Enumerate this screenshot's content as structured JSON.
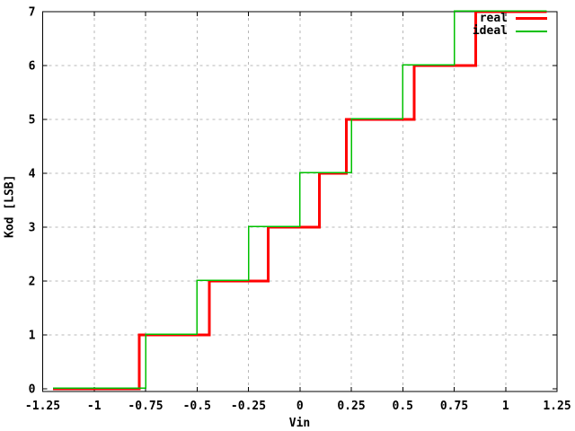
{
  "chart_data": {
    "type": "line",
    "subtype": "staircase-adc-transfer",
    "title": "",
    "xlabel": "Vin",
    "ylabel": "Kod [LSB]",
    "xlim": [
      -1.25,
      1.25
    ],
    "ylim": [
      0,
      7
    ],
    "x_tick_values": [
      -1.25,
      -1,
      -0.75,
      -0.5,
      -0.25,
      0,
      0.25,
      0.5,
      0.75,
      1,
      1.25
    ],
    "x_tick_labels": [
      "-1.25",
      "-1",
      "-0.75",
      "-0.5",
      "-0.25",
      "0",
      "0.25",
      "0.5",
      "0.75",
      "1",
      "1.25"
    ],
    "y_tick_values": [
      0,
      1,
      2,
      3,
      4,
      5,
      6,
      7
    ],
    "y_tick_labels": [
      "0",
      "1",
      "2",
      "3",
      "4",
      "5",
      "6",
      "7"
    ],
    "grid": true,
    "grid_style": "dashed",
    "grid_color": "#b8b8b8",
    "axis_color": "#000000",
    "background_color": "#ffffff",
    "legend_position": "top-right-inside",
    "series": [
      {
        "name": "real",
        "color": "#ff0000",
        "line_width": 3,
        "x_start": -1.2,
        "x_end": 1.2,
        "codes": [
          0,
          1,
          2,
          3,
          4,
          5,
          6,
          7
        ],
        "transition_voltages": [
          -0.78,
          -0.44,
          -0.155,
          0.095,
          0.225,
          0.555,
          0.855
        ]
      },
      {
        "name": "ideal",
        "color": "#00c000",
        "line_width": 1.5,
        "x_start": -1.2,
        "x_end": 1.2,
        "codes": [
          0,
          1,
          2,
          3,
          4,
          5,
          6,
          7
        ],
        "transition_voltages": [
          -0.75,
          -0.5,
          -0.25,
          0,
          0.25,
          0.5,
          0.75
        ]
      }
    ]
  }
}
